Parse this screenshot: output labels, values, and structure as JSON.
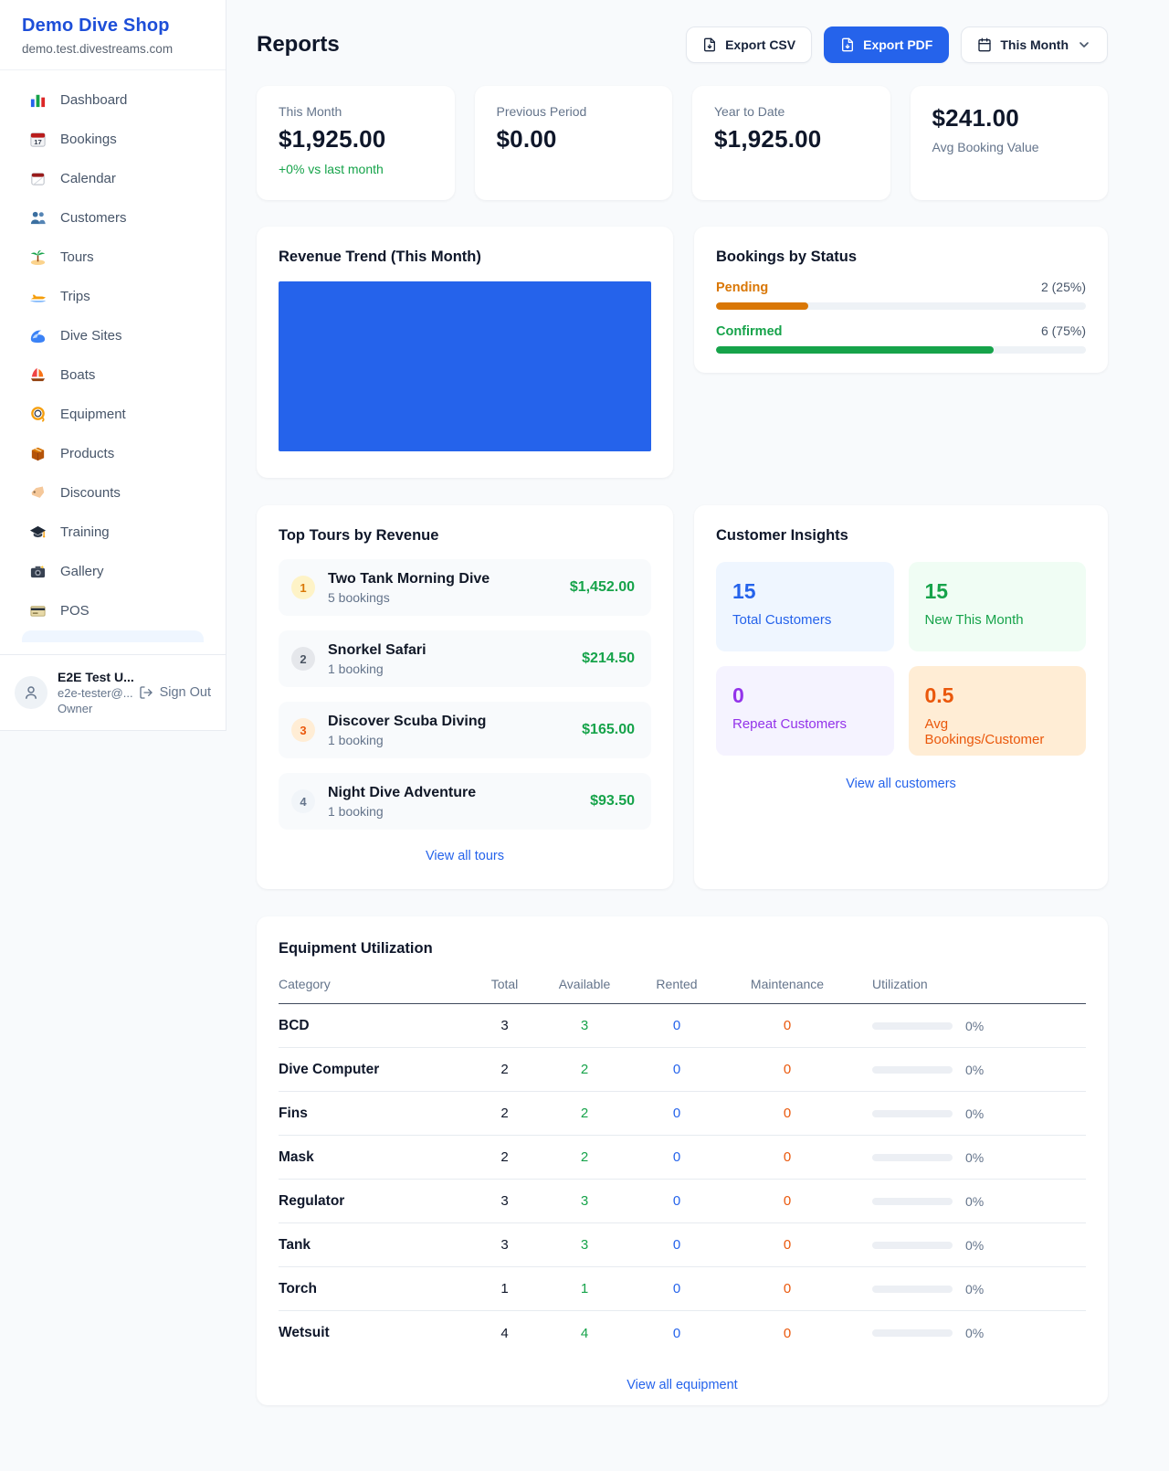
{
  "sidebar": {
    "shop_name": "Demo Dive Shop",
    "shop_domain": "demo.test.divestreams.com",
    "items": [
      {
        "icon": "dashboard-chart-icon",
        "label": "Dashboard"
      },
      {
        "icon": "bookings-calendar-icon",
        "label": "Bookings"
      },
      {
        "icon": "calendar-icon",
        "label": "Calendar"
      },
      {
        "icon": "customers-people-icon",
        "label": "Customers"
      },
      {
        "icon": "tours-island-icon",
        "label": "Tours"
      },
      {
        "icon": "trips-speedboat-icon",
        "label": "Trips"
      },
      {
        "icon": "dive-sites-wave-icon",
        "label": "Dive Sites"
      },
      {
        "icon": "boats-sailboat-icon",
        "label": "Boats"
      },
      {
        "icon": "equipment-dive-mask-icon",
        "label": "Equipment"
      },
      {
        "icon": "products-package-icon",
        "label": "Products"
      },
      {
        "icon": "discounts-tag-icon",
        "label": "Discounts"
      },
      {
        "icon": "training-grad-cap-icon",
        "label": "Training"
      },
      {
        "icon": "gallery-camera-icon",
        "label": "Gallery"
      },
      {
        "icon": "pos-credit-card-icon",
        "label": "POS"
      }
    ],
    "user": {
      "name": "E2E Test U...",
      "email": "e2e-tester@...",
      "role": "Owner",
      "sign_out_label": "Sign Out"
    }
  },
  "header": {
    "title": "Reports",
    "export_csv_label": "Export CSV",
    "export_pdf_label": "Export PDF",
    "period_label": "This Month"
  },
  "stats": [
    {
      "label": "This Month",
      "value": "$1,925.00",
      "delta": "+0% vs last month"
    },
    {
      "label": "Previous Period",
      "value": "$0.00"
    },
    {
      "label": "Year to Date",
      "value": "$1,925.00"
    },
    {
      "label": "Avg Booking Value",
      "value": "$241.00"
    }
  ],
  "revenue_trend": {
    "title": "Revenue Trend (This Month)",
    "chart_color": "#2563eb"
  },
  "bookings_by_status": {
    "title": "Bookings by Status",
    "items": [
      {
        "label": "Pending",
        "count": "2 (25%)",
        "percent": 25,
        "color": "#d97706"
      },
      {
        "label": "Confirmed",
        "count": "6 (75%)",
        "percent": 75,
        "color": "#16a34a"
      }
    ]
  },
  "top_tours": {
    "title": "Top Tours by Revenue",
    "view_all_label": "View all tours",
    "items": [
      {
        "rank": "1",
        "name": "Two Tank Morning Dive",
        "bookings": "5 bookings",
        "revenue": "$1,452.00",
        "badge_bg": "#fef3c7",
        "badge_color": "#d97706"
      },
      {
        "rank": "2",
        "name": "Snorkel Safari",
        "bookings": "1 booking",
        "revenue": "$214.50",
        "badge_bg": "#e5e7eb",
        "badge_color": "#4b5563"
      },
      {
        "rank": "3",
        "name": "Discover Scuba Diving",
        "bookings": "1 booking",
        "revenue": "$165.00",
        "badge_bg": "#ffedd5",
        "badge_color": "#ea580c"
      },
      {
        "rank": "4",
        "name": "Night Dive Adventure",
        "bookings": "1 booking",
        "revenue": "$93.50",
        "badge_bg": "#f1f5f9",
        "badge_color": "#64748b"
      }
    ]
  },
  "customer_insights": {
    "title": "Customer Insights",
    "view_all_label": "View all customers",
    "tiles": [
      {
        "value": "15",
        "label": "Total Customers",
        "color": "#2563eb",
        "bg": "#eff6ff"
      },
      {
        "value": "15",
        "label": "New This Month",
        "color": "#16a34a",
        "bg": "#f0fdf4"
      },
      {
        "value": "0",
        "label": "Repeat Customers",
        "color": "#9333ea",
        "bg": "#f5f3ff"
      },
      {
        "value": "0.5",
        "label": "Avg Bookings/Customer",
        "color": "#ea580c",
        "bg": "#ffedd5"
      }
    ]
  },
  "equipment": {
    "title": "Equipment Utilization",
    "view_all_label": "View all equipment",
    "columns": [
      "Category",
      "Total",
      "Available",
      "Rented",
      "Maintenance",
      "Utilization"
    ],
    "rows": [
      {
        "category": "BCD",
        "total": "3",
        "available": "3",
        "rented": "0",
        "maintenance": "0",
        "utilization": "0%"
      },
      {
        "category": "Dive Computer",
        "total": "2",
        "available": "2",
        "rented": "0",
        "maintenance": "0",
        "utilization": "0%"
      },
      {
        "category": "Fins",
        "total": "2",
        "available": "2",
        "rented": "0",
        "maintenance": "0",
        "utilization": "0%"
      },
      {
        "category": "Mask",
        "total": "2",
        "available": "2",
        "rented": "0",
        "maintenance": "0",
        "utilization": "0%"
      },
      {
        "category": "Regulator",
        "total": "3",
        "available": "3",
        "rented": "0",
        "maintenance": "0",
        "utilization": "0%"
      },
      {
        "category": "Tank",
        "total": "3",
        "available": "3",
        "rented": "0",
        "maintenance": "0",
        "utilization": "0%"
      },
      {
        "category": "Torch",
        "total": "1",
        "available": "1",
        "rented": "0",
        "maintenance": "0",
        "utilization": "0%"
      },
      {
        "category": "Wetsuit",
        "total": "4",
        "available": "4",
        "rented": "0",
        "maintenance": "0",
        "utilization": "0%"
      }
    ]
  }
}
